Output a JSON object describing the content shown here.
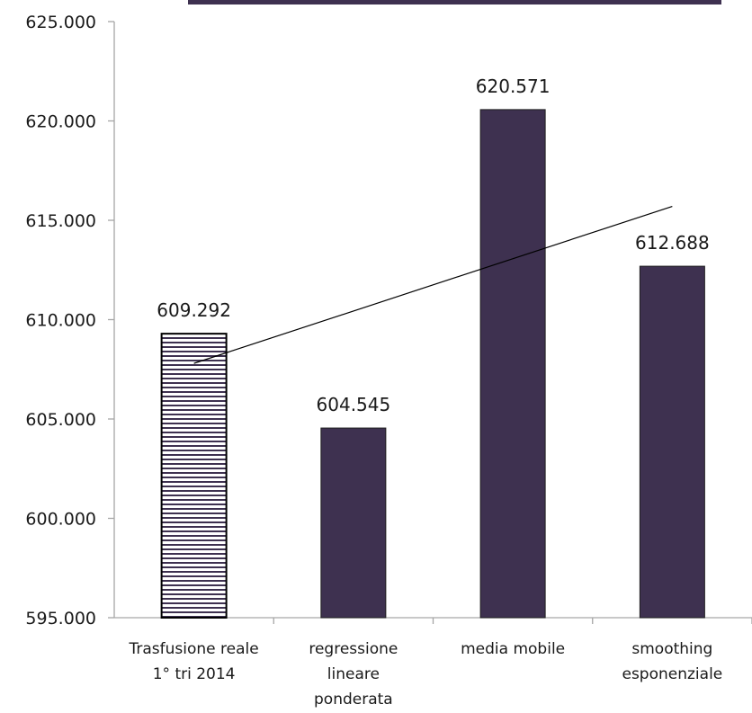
{
  "chart_data": {
    "type": "bar",
    "categories": [
      [
        "Trasfusione reale",
        "1° tri 2014"
      ],
      [
        "regressione",
        "lineare",
        "ponderata"
      ],
      [
        "media mobile"
      ],
      [
        "smoothing",
        "esponenziale"
      ]
    ],
    "values": [
      609292,
      604545,
      620571,
      612688
    ],
    "data_labels": [
      "609.292",
      "604.545",
      "620.571",
      "612.688"
    ],
    "ylim": [
      595000,
      625000
    ],
    "y_ticks": [
      595000,
      600000,
      605000,
      610000,
      615000,
      620000,
      625000
    ],
    "y_tick_labels": [
      "595.000",
      "600.000",
      "605.000",
      "610.000",
      "615.000",
      "620.000",
      "625.000"
    ],
    "trendline": {
      "type": "linear",
      "from_category": 0,
      "to_category": 3,
      "start": 607800,
      "end": 615700
    },
    "bar_styles": [
      "hatched-horizontal",
      "solid",
      "solid",
      "solid"
    ],
    "grid": false,
    "legend": "none",
    "colors": {
      "bar": "#3e3150",
      "hatch": "#3e3150",
      "axis": "#a6a6a6",
      "trend": "#000000"
    }
  }
}
